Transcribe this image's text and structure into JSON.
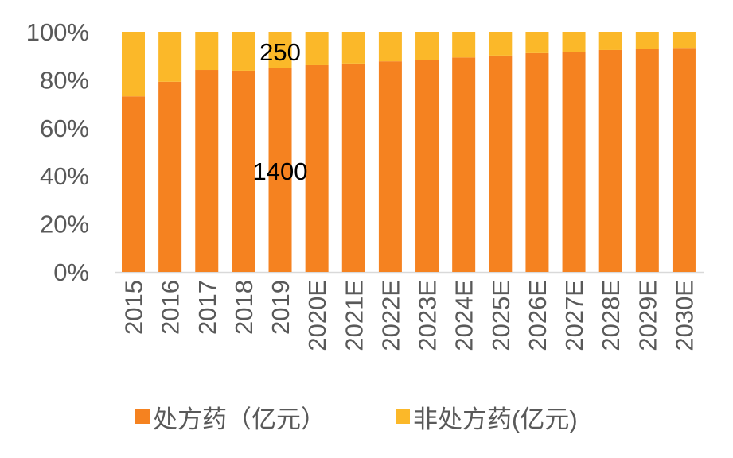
{
  "chart_data": {
    "type": "bar",
    "stacked": "percent",
    "categories": [
      "2015",
      "2016",
      "2017",
      "2018",
      "2019",
      "2020E",
      "2021E",
      "2022E",
      "2023E",
      "2024E",
      "2025E",
      "2026E",
      "2027E",
      "2028E",
      "2029E",
      "2030E"
    ],
    "series": [
      {
        "name": "处方药（亿元）",
        "color": "#F58220",
        "values": [
          73.1,
          79.2,
          84.1,
          83.8,
          84.8,
          86.1,
          86.8,
          87.7,
          88.4,
          89.3,
          90.1,
          91.1,
          91.7,
          92.4,
          92.9,
          93.3
        ]
      },
      {
        "name": "非处方药(亿元)",
        "color": "#FBB829",
        "values": [
          26.9,
          20.8,
          15.9,
          16.2,
          15.2,
          13.9,
          13.2,
          12.3,
          11.6,
          10.7,
          9.9,
          8.9,
          8.3,
          7.6,
          7.1,
          6.7
        ]
      }
    ],
    "annotations": [
      {
        "text": "250",
        "category": "2019",
        "series": "非处方药(亿元)"
      },
      {
        "text": "1400",
        "category": "2019",
        "series": "处方药（亿元）"
      }
    ],
    "yticks": [
      "0%",
      "20%",
      "40%",
      "60%",
      "80%",
      "100%"
    ],
    "ylim": [
      0,
      100
    ],
    "grid": false,
    "legend": "bottom"
  }
}
